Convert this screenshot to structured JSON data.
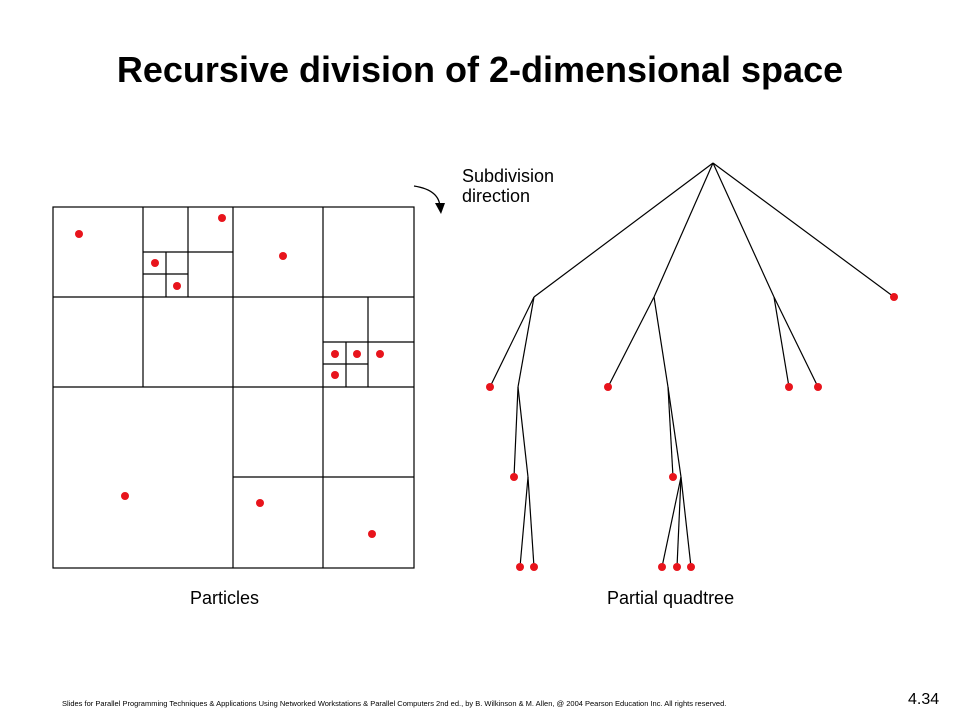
{
  "slide": {
    "title": "Recursive division of 2-dimensional space",
    "particles_label": "Particles",
    "quadtree_label": "Partial quadtree",
    "subdivision_line1": "Subdivision",
    "subdivision_line2": "direction",
    "footer": "Slides for Parallel Programming Techniques & Applications Using Networked Workstations & Parallel Computers 2nd ed., by B. Wilkinson & M. Allen, @ 2004 Pearson Education Inc. All rights reserved.",
    "slide_number": "4.34"
  },
  "colors": {
    "particle": "#e8141c",
    "line": "#000000"
  },
  "icons": {
    "subdivision_arrow": "curved-arrow-icon"
  }
}
